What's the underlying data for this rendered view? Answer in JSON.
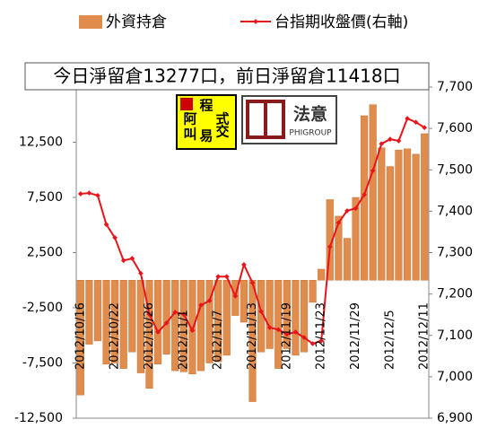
{
  "chart_data": {
    "type": "bar_line",
    "title": "今日淨留倉13277口，前日淨留倉11418口",
    "logos": {
      "left": [
        "程",
        "阿",
        "式",
        "叫",
        "易",
        "交"
      ],
      "right_title": "法意",
      "right_subtitle": "PHIGROUP"
    },
    "categories": [
      "2012/10/16",
      null,
      null,
      null,
      "2012/10/22",
      null,
      null,
      null,
      "2012/10/26",
      null,
      null,
      null,
      "2012/11/1",
      null,
      null,
      null,
      "2012/11/7",
      null,
      null,
      null,
      "2012/11/13",
      null,
      null,
      null,
      "2012/11/19",
      null,
      null,
      null,
      "2012/11/23",
      null,
      null,
      null,
      "2012/11/29",
      null,
      null,
      null,
      "2012/12/5",
      null,
      null,
      null,
      "2012/12/11"
    ],
    "series": [
      {
        "name": "外資持倉",
        "color": "#e08c4c",
        "values": [
          -10400,
          -5800,
          -5500,
          -7600,
          -7500,
          -8000,
          -6500,
          -8400,
          -9800,
          -7600,
          -6700,
          -8200,
          -8300,
          -8500,
          -8200,
          -7500,
          -7400,
          -6800,
          -3200,
          -3800,
          -11000,
          -6500,
          -6200,
          -8000,
          -6200,
          -6800,
          -6500,
          -2000,
          1000,
          7300,
          5800,
          3800,
          7500,
          14900,
          15900,
          12000,
          10300,
          11800,
          11900,
          11418,
          13277
        ]
      },
      {
        "name": "台指期收盤價(右軸)",
        "color": "#e8141c",
        "axis": "y2",
        "values": [
          7442,
          7444,
          7438,
          7368,
          7336,
          7281,
          7286,
          7250,
          7151,
          7108,
          7130,
          7156,
          7151,
          7112,
          7173,
          7184,
          7242,
          7242,
          7195,
          7271,
          7227,
          7158,
          7119,
          7114,
          7103,
          7108,
          7095,
          7080,
          7087,
          7314,
          7372,
          7401,
          7407,
          7440,
          7498,
          7563,
          7574,
          7570,
          7624,
          7615,
          7602
        ]
      }
    ],
    "ylim": [
      -12500,
      17500
    ],
    "yticks": [
      {
        "value": -12500,
        "label": "-12,500"
      },
      {
        "value": -7500,
        "label": "-7,500"
      },
      {
        "value": -2500,
        "label": "-2,500"
      },
      {
        "value": 2500,
        "label": "2,500"
      },
      {
        "value": 7500,
        "label": "7,500"
      },
      {
        "value": 12500,
        "label": "12,500"
      }
    ],
    "y2lim": [
      6900,
      7700
    ],
    "y2ticks": [
      {
        "value": 6900,
        "label": "6,900"
      },
      {
        "value": 7000,
        "label": "7,000"
      },
      {
        "value": 7100,
        "label": "7,100"
      },
      {
        "value": 7200,
        "label": "7,200"
      },
      {
        "value": 7300,
        "label": "7,300"
      },
      {
        "value": 7400,
        "label": "7,400"
      },
      {
        "value": 7500,
        "label": "7,500"
      },
      {
        "value": 7600,
        "label": "7,600"
      },
      {
        "value": 7700,
        "label": "7,700"
      }
    ],
    "grid": false,
    "legend": "top"
  }
}
